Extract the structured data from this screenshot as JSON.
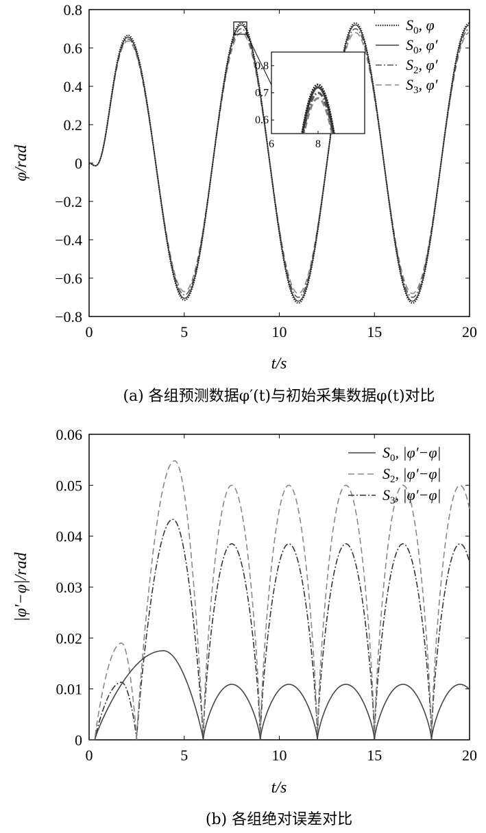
{
  "chart_data": [
    {
      "type": "line",
      "title": "",
      "xlabel": "t/s",
      "ylabel": "φ/rad",
      "caption": "(a) 各组预测数据φ′(t)与初始采集数据φ(t)对比",
      "xlim": [
        0,
        20
      ],
      "ylim": [
        -0.8,
        0.8
      ],
      "xticks": [
        "0",
        "5",
        "10",
        "15",
        "20"
      ],
      "yticks": [
        "0.8",
        "0.6",
        "0.4",
        "0.2",
        "0",
        "−0.2",
        "−0.4",
        "−0.6",
        "−0.8"
      ],
      "legend_position": "top-right",
      "series": [
        {
          "name": "S0, φ",
          "style": "dotted",
          "color": "#222222",
          "amplitude": 0.73,
          "first_peak": 0.64
        },
        {
          "name": "S0, φ′",
          "style": "solid",
          "color": "#444444",
          "amplitude": 0.72,
          "first_peak": 0.63
        },
        {
          "name": "S2, φ′",
          "style": "dash-dot",
          "color": "#555555",
          "amplitude": 0.7,
          "first_peak": 0.625
        },
        {
          "name": "S3, φ′",
          "style": "dashed",
          "color": "#888888",
          "amplitude": 0.68,
          "first_peak": 0.62
        }
      ],
      "peaks_t": [
        2.0,
        8.0,
        14.0,
        20.0
      ],
      "troughs_t": [
        5.0,
        11.0,
        17.0
      ],
      "inset": {
        "xlim": [
          6,
          10
        ],
        "ylim": [
          0.55,
          0.85
        ],
        "xticks": [
          "6",
          "8"
        ],
        "yticks": [
          "0.8",
          "0.7",
          "0.6"
        ],
        "zoom_region_t": [
          7.6,
          8.4
        ],
        "zoom_region_y": [
          0.66,
          0.74
        ]
      }
    },
    {
      "type": "line",
      "title": "",
      "xlabel": "t/s",
      "ylabel": "|φ′−φ|/rad",
      "caption": "(b) 各组绝对误差对比",
      "xlim": [
        0,
        20
      ],
      "ylim": [
        0,
        0.06
      ],
      "xticks": [
        "0",
        "5",
        "10",
        "15",
        "20"
      ],
      "yticks": [
        "0.06",
        "0.05",
        "0.04",
        "0.03",
        "0.02",
        "0.01",
        "0"
      ],
      "legend_position": "top-right",
      "series": [
        {
          "name": "S0, |φ′−φ|",
          "style": "solid",
          "color": "#444444",
          "first_hump": {
            "t0": 0.3,
            "t1": 6.0,
            "peak_t": 3.9,
            "peak": 0.0175
          },
          "period_peak": 0.0109
        },
        {
          "name": "S2, |φ′−φ|",
          "style": "dashed",
          "color": "#888888",
          "first_hump": {
            "t0": 0.3,
            "t1": 2.5,
            "peak_t": 1.7,
            "peak": 0.019
          },
          "second_hump": {
            "t0": 2.5,
            "t1": 6.0,
            "peak_t": 4.5,
            "peak": 0.0548
          },
          "period_peak": 0.05
        },
        {
          "name": "S3, |φ′−φ|",
          "style": "dash-dot",
          "color": "#333333",
          "first_hump": {
            "t0": 0.3,
            "t1": 2.5,
            "peak_t": 1.7,
            "peak": 0.0113
          },
          "second_hump": {
            "t0": 2.5,
            "t1": 6.0,
            "peak_t": 4.4,
            "peak": 0.0433
          },
          "period_peak": 0.0385
        }
      ],
      "zeros_t": [
        6.0,
        9.0,
        12.0,
        15.0,
        18.0
      ]
    }
  ]
}
